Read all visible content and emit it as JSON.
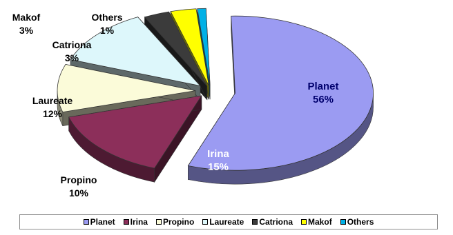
{
  "chart_data": {
    "type": "pie",
    "title": "",
    "three_d": true,
    "exploded": true,
    "slices": [
      {
        "name": "Planet",
        "value": 56,
        "label": "56%",
        "color": "#9b9bf2"
      },
      {
        "name": "Irina",
        "value": 15,
        "label": "15%",
        "color": "#8c2f5a"
      },
      {
        "name": "Propino",
        "value": 10,
        "label": "10%",
        "color": "#fbfbd9"
      },
      {
        "name": "Laureate",
        "value": 12,
        "label": "12%",
        "color": "#ddf7fb"
      },
      {
        "name": "Catriona",
        "value": 3,
        "label": "3%",
        "color": "#3b3b3b"
      },
      {
        "name": "Makof",
        "value": 3,
        "label": "3%",
        "color": "#ffff00"
      },
      {
        "name": "Others",
        "value": 1,
        "label": "1%",
        "color": "#00b0e6"
      }
    ],
    "legend": {
      "position": "bottom",
      "entries": [
        "Planet",
        "Irina",
        "Propino",
        "Laureate",
        "Catriona",
        "Makof",
        "Others"
      ]
    }
  }
}
